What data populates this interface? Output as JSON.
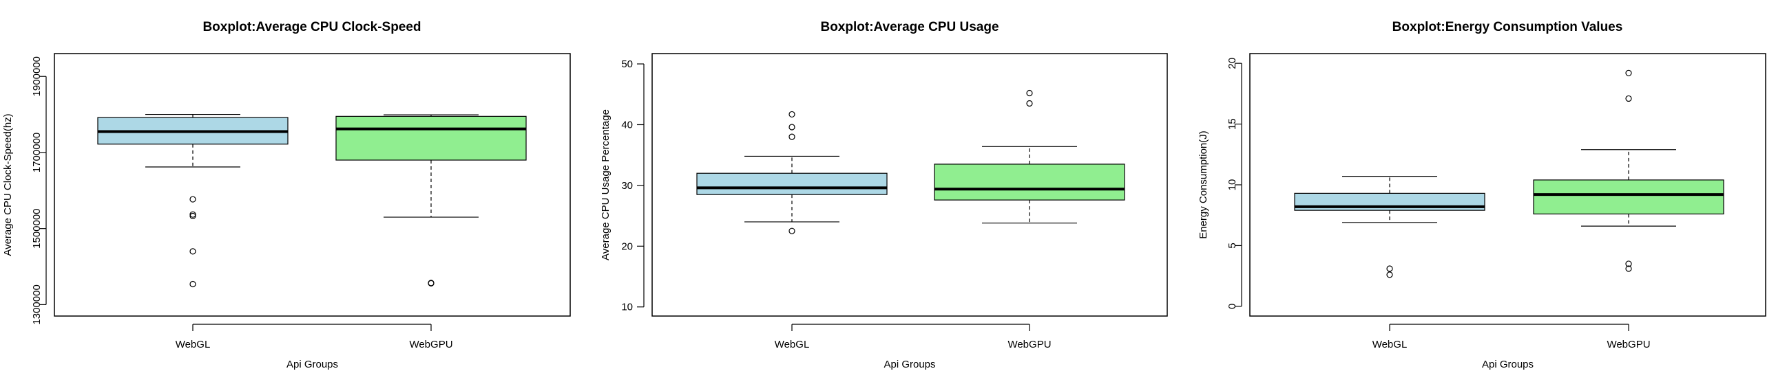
{
  "chart_data": [
    {
      "type": "boxplot",
      "title": "Boxplot:Average CPU Clock-Speed",
      "xlabel": "Api Groups",
      "ylabel": "Average CPU Clock-Speed(hz)",
      "ylim": [
        1270000,
        1960000
      ],
      "yticks": [
        1300000,
        1500000,
        1700000,
        1900000
      ],
      "ytick_labels": [
        "1300000",
        "1500000",
        "1700000",
        "1900000"
      ],
      "ytick_rotated": true,
      "categories": [
        "WebGL",
        "WebGPU"
      ],
      "colors": [
        "#add8e6",
        "#90ee90"
      ],
      "boxes": [
        {
          "whisker_low": 1662000,
          "q1": 1722000,
          "median": 1755000,
          "q3": 1792000,
          "whisker_high": 1800000,
          "outliers": [
            1577000,
            1537000,
            1533000,
            1440000,
            1354000
          ]
        },
        {
          "whisker_low": 1530000,
          "q1": 1680000,
          "median": 1762000,
          "q3": 1795000,
          "whisker_high": 1799000,
          "outliers": [
            1356000,
            1357000
          ]
        }
      ]
    },
    {
      "type": "boxplot",
      "title": "Boxplot:Average CPU Usage",
      "xlabel": "Api Groups",
      "ylabel": "Average CPU Usage Percentage",
      "ylim": [
        8.5,
        51.7
      ],
      "yticks": [
        10,
        20,
        30,
        40,
        50
      ],
      "ytick_labels": [
        "10",
        "20",
        "30",
        "40",
        "50"
      ],
      "ytick_rotated": false,
      "categories": [
        "WebGL",
        "WebGPU"
      ],
      "colors": [
        "#add8e6",
        "#90ee90"
      ],
      "boxes": [
        {
          "whisker_low": 24.0,
          "q1": 28.5,
          "median": 29.6,
          "q3": 32.0,
          "whisker_high": 34.8,
          "outliers": [
            41.7,
            39.6,
            38.0,
            22.5
          ]
        },
        {
          "whisker_low": 23.8,
          "q1": 27.6,
          "median": 29.4,
          "q3": 33.5,
          "whisker_high": 36.4,
          "outliers": [
            45.2,
            43.5
          ]
        }
      ]
    },
    {
      "type": "boxplot",
      "title": "Boxplot:Energy Consumption Values",
      "xlabel": "Api Groups",
      "ylabel": "Energy Consumption(J)",
      "ylim": [
        -0.8,
        20.8
      ],
      "yticks": [
        0,
        5,
        10,
        15,
        20
      ],
      "ytick_labels": [
        "0",
        "5",
        "10",
        "15",
        "20"
      ],
      "ytick_rotated": true,
      "categories": [
        "WebGL",
        "WebGPU"
      ],
      "colors": [
        "#add8e6",
        "#90ee90"
      ],
      "boxes": [
        {
          "whisker_low": 6.9,
          "q1": 7.9,
          "median": 8.2,
          "q3": 9.3,
          "whisker_high": 10.7,
          "outliers": [
            3.1,
            2.6
          ]
        },
        {
          "whisker_low": 6.6,
          "q1": 7.6,
          "median": 9.2,
          "q3": 10.4,
          "whisker_high": 12.9,
          "outliers": [
            19.2,
            17.1,
            3.5,
            3.1
          ]
        }
      ]
    }
  ]
}
